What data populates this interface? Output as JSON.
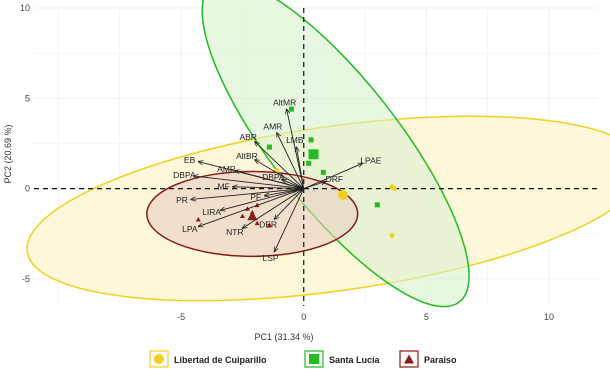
{
  "chart_data": {
    "type": "scatter",
    "subtype": "pca-biplot",
    "xlabel": "PC1 (31.34 %)",
    "ylabel": "PC2 (20.69 %)",
    "xlim": [
      -11,
      12
    ],
    "ylim": [
      -6.5,
      10
    ],
    "x_ticks": [
      -5,
      0,
      5,
      10
    ],
    "x_tick_labels": [
      "-5",
      "0",
      "5",
      "10"
    ],
    "y_ticks": [
      -5,
      0,
      5,
      10
    ],
    "y_tick_labels": [
      "-5",
      "0",
      "5",
      "10"
    ],
    "grid": true,
    "legend_position": "bottom",
    "series": [
      {
        "name": "Libertad de Cuiparillo",
        "marker": "circle",
        "color": "#f2d01e",
        "fill": "#fdf6cf",
        "ellipse": {
          "cx": 1.3,
          "cy": -1.1,
          "rx": 12.7,
          "ry": 4.55,
          "angle_deg": 8
        },
        "points": [
          [
            3.6,
            0.1
          ],
          [
            3.7,
            0.0
          ],
          [
            1.6,
            -0.35
          ],
          [
            3.6,
            -2.6
          ],
          [
            -1.1,
            1.0
          ]
        ],
        "centroid": [
          1.6,
          -0.35
        ]
      },
      {
        "name": "Santa Lucía",
        "marker": "square",
        "color": "#22bb22",
        "fill": "#d9f2cf",
        "ellipse": {
          "cx": 1.3,
          "cy": 2.5,
          "rx": 8.2,
          "ry": 3.5,
          "angle_deg": -52
        },
        "points": [
          [
            -0.5,
            4.4
          ],
          [
            -1.4,
            2.3
          ],
          [
            0.3,
            2.7
          ],
          [
            0.4,
            1.9
          ],
          [
            3.0,
            -0.9
          ],
          [
            0.8,
            0.9
          ],
          [
            0.2,
            1.4
          ]
        ],
        "centroid": [
          0.4,
          1.9
        ]
      },
      {
        "name": "Paraiso",
        "marker": "triangle",
        "color": "#8b1c1c",
        "fill": "#e9cfc0",
        "ellipse": {
          "cx": -2.1,
          "cy": -1.4,
          "rx": 4.3,
          "ry": 2.35,
          "angle_deg": 0
        },
        "points": [
          [
            -2.0,
            -1.6
          ],
          [
            -2.1,
            -1.3
          ],
          [
            -2.3,
            -1.1
          ],
          [
            -1.9,
            -0.9
          ],
          [
            -4.3,
            -1.7
          ],
          [
            -1.9,
            -1.9
          ],
          [
            -1.4,
            -2.0
          ],
          [
            -2.5,
            -1.5
          ]
        ],
        "centroid": [
          -2.1,
          -1.5
        ]
      }
    ],
    "loadings": [
      {
        "label": "AltMR",
        "x": -0.7,
        "y": 4.4
      },
      {
        "label": "AMR",
        "x": -1.1,
        "y": 3.1
      },
      {
        "label": "ABR",
        "x": -2.0,
        "y": 2.6
      },
      {
        "label": "LMB",
        "x": -0.3,
        "y": 2.3
      },
      {
        "label": "AltBR",
        "x": -2.0,
        "y": 1.6
      },
      {
        "label": "EB",
        "x": -4.3,
        "y": 1.5
      },
      {
        "label": "AMP",
        "x": -2.8,
        "y": 1.0
      },
      {
        "label": "DBPA",
        "x": -4.5,
        "y": 0.7
      },
      {
        "label": "DBPA",
        "x": -0.9,
        "y": 0.5
      },
      {
        "label": "MF",
        "x": -2.9,
        "y": 0.1
      },
      {
        "label": "LPAE",
        "x": 2.4,
        "y": 1.4
      },
      {
        "label": "DRF",
        "x": 0.9,
        "y": 0.4
      },
      {
        "label": "PR",
        "x": -4.6,
        "y": -0.6
      },
      {
        "label": "LIRA",
        "x": -3.4,
        "y": -1.2
      },
      {
        "label": "LPA",
        "x": -4.3,
        "y": -2.1
      },
      {
        "label": "NTR",
        "x": -2.5,
        "y": -2.2
      },
      {
        "label": "DER",
        "x": -1.2,
        "y": -1.7
      },
      {
        "label": "LSP",
        "x": -1.2,
        "y": -3.5
      },
      {
        "label": "PF",
        "x": -1.6,
        "y": -0.4
      }
    ]
  }
}
